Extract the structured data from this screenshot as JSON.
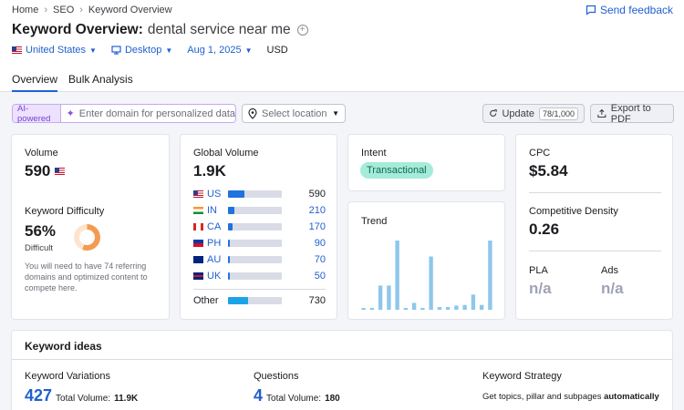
{
  "breadcrumbs": [
    "Home",
    "SEO",
    "Keyword Overview"
  ],
  "feedback_label": "Send feedback",
  "title": {
    "label": "Keyword Overview:",
    "keyword": "dental service near me"
  },
  "filters": {
    "country": "United States",
    "device": "Desktop",
    "date": "Aug 1, 2025",
    "currency": "USD"
  },
  "tabs": [
    {
      "label": "Overview",
      "active": true
    },
    {
      "label": "Bulk Analysis",
      "active": false
    }
  ],
  "toolbar": {
    "ai_tag": "AI-powered",
    "domain_placeholder": "Enter domain for personalized data",
    "location_placeholder": "Select location",
    "update_label": "Update",
    "update_count": "78/1,000",
    "export_label": "Export to PDF"
  },
  "volume": {
    "label": "Volume",
    "value": "590"
  },
  "kd": {
    "label": "Keyword Difficulty",
    "value": "56%",
    "level": "Difficult",
    "percent": 56,
    "note": "You will need to have 74 referring domains and optimized content to compete here."
  },
  "global_volume": {
    "label": "Global Volume",
    "value": "1.9K",
    "rows": [
      {
        "code": "US",
        "value": "590",
        "share": 0.31
      },
      {
        "code": "IN",
        "value": "210",
        "share": 0.12
      },
      {
        "code": "CA",
        "value": "170",
        "share": 0.09
      },
      {
        "code": "PH",
        "value": "90",
        "share": 0.04
      },
      {
        "code": "AU",
        "value": "70",
        "share": 0.03
      },
      {
        "code": "UK",
        "value": "50",
        "share": 0.03
      }
    ],
    "other": {
      "label": "Other",
      "value": "730",
      "share": 0.38
    }
  },
  "intent": {
    "label": "Intent",
    "value": "Transactional"
  },
  "trend": {
    "label": "Trend",
    "values": [
      2,
      2,
      35,
      35,
      100,
      2,
      10,
      2,
      77,
      4,
      4,
      6,
      7,
      22,
      7,
      100
    ]
  },
  "cpc": {
    "label": "CPC",
    "value": "$5.84"
  },
  "competitive_density": {
    "label": "Competitive Density",
    "value": "0.26"
  },
  "pla": {
    "label": "PLA",
    "value": "n/a"
  },
  "ads": {
    "label": "Ads",
    "value": "n/a"
  },
  "keyword_ideas": {
    "title": "Keyword ideas",
    "variations": {
      "label": "Keyword Variations",
      "count": "427",
      "total_label": "Total Volume:",
      "total": "11.9K"
    },
    "questions": {
      "label": "Questions",
      "count": "4",
      "total_label": "Total Volume:",
      "total": "180"
    },
    "strategy": {
      "label": "Keyword Strategy",
      "text": "Get topics, pillar and subpages",
      "emphasis": "automatically"
    }
  },
  "colors": {
    "accent": "#1f5fd1",
    "bar": "#1e73dd",
    "trend": "#8ec7ea",
    "intent_bg": "#a5ebd9"
  }
}
